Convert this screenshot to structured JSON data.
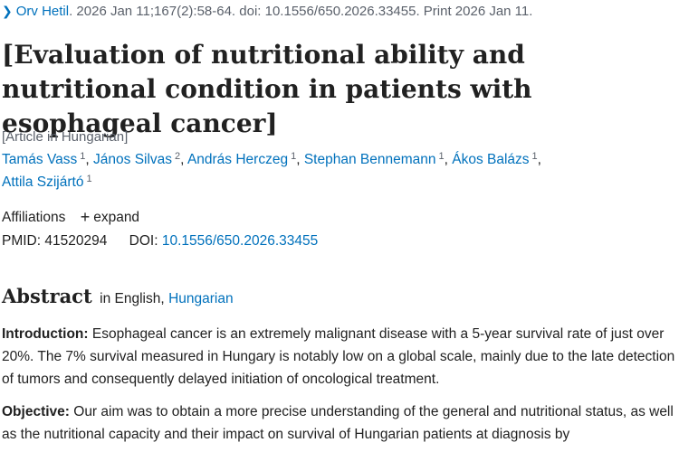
{
  "citation": {
    "journal": "Orv Hetil",
    "details": ". 2026 Jan 11;167(2):58-64. doi: 10.1556/650.2026.33455. Print 2026 Jan 11."
  },
  "title": "[Evaluation of nutritional ability and nutritional condition in patients with esophageal cancer]",
  "language_note": "[Article in Hungarian]",
  "authors": [
    {
      "name": "Tamás Vass",
      "aff": "1"
    },
    {
      "name": "János Silvas",
      "aff": "2"
    },
    {
      "name": "András Herczeg",
      "aff": "1"
    },
    {
      "name": "Stephan Bennemann",
      "aff": "1"
    },
    {
      "name": "Ákos Balázs",
      "aff": "1"
    },
    {
      "name": "Attila Szijártó",
      "aff": "1"
    }
  ],
  "affiliations": {
    "label": "Affiliations",
    "toggle": "expand"
  },
  "ids": {
    "pmid_label": "PMID:",
    "pmid": "41520294",
    "doi_label": "DOI:",
    "doi": "10.1556/650.2026.33455"
  },
  "abstract": {
    "heading": "Abstract",
    "in_prefix": "in English,",
    "alt_language": "Hungarian",
    "introduction_label": "Introduction:",
    "introduction_text": " Esophageal cancer is an extremely malignant disease with a 5-year survival rate of just over 20%. The 7% survival measured in Hungary is notably low on a global scale, mainly due to the late detection of tumors and consequently delayed initiation of oncological treatment.",
    "objective_label": "Objective:",
    "objective_text": " Our aim was to obtain a more precise understanding of the general and nutritional status, as well as the nutritional capacity and their impact on survival of Hungarian patients at diagnosis by"
  }
}
